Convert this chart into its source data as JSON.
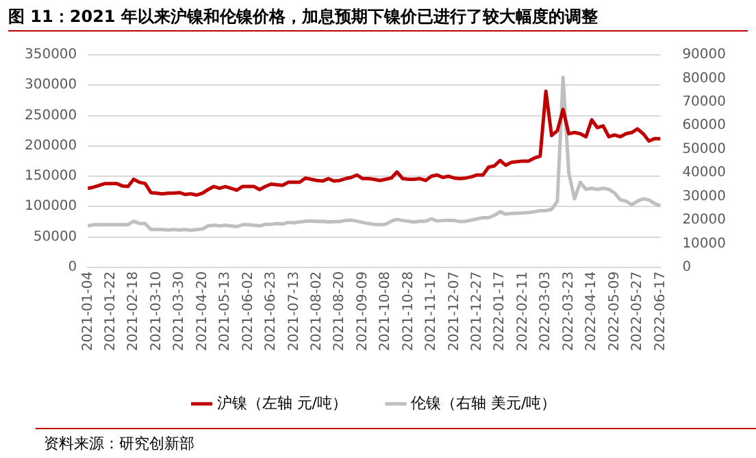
{
  "chart_data": {
    "type": "line",
    "title": "图 11：2021 年以来沪镍和伦镍价格，加息预期下镍价已进行了较大幅度的调整",
    "categories": [
      "2021-01-04",
      null,
      null,
      null,
      "2021-01-22",
      null,
      null,
      null,
      "2021-02-18",
      null,
      null,
      null,
      "2021-03-10",
      null,
      null,
      null,
      "2021-03-30",
      null,
      null,
      null,
      "2021-04-20",
      null,
      null,
      null,
      "2021-05-13",
      null,
      null,
      null,
      "2021-06-02",
      null,
      null,
      null,
      "2021-06-23",
      null,
      null,
      null,
      "2021-07-13",
      null,
      null,
      null,
      "2021-08-02",
      null,
      null,
      null,
      "2021-08-20",
      null,
      null,
      null,
      "2021-09-09",
      null,
      null,
      null,
      "2021-10-08",
      null,
      null,
      null,
      "2021-10-28",
      null,
      null,
      null,
      "2021-11-17",
      null,
      null,
      null,
      "2021-12-07",
      null,
      null,
      null,
      "2021-12-27",
      null,
      null,
      null,
      "2022-01-17",
      null,
      null,
      null,
      "2022-02-11",
      null,
      null,
      null,
      "2022-03-03",
      null,
      null,
      null,
      "2022-03-23",
      null,
      null,
      null,
      "2022-04-14",
      null,
      null,
      null,
      "2022-05-09",
      null,
      null,
      null,
      "2022-05-27",
      null,
      null,
      null,
      "2022-06-17"
    ],
    "series": [
      {
        "name": "沪镍（左轴 元/吨）",
        "color": "#c00000",
        "values": [
          130000,
          132000,
          135000,
          138000,
          138000,
          138000,
          134000,
          133000,
          145000,
          140000,
          138000,
          123000,
          122000,
          121000,
          122000,
          122000,
          123000,
          120000,
          121000,
          119000,
          122000,
          128000,
          133000,
          130000,
          133000,
          130000,
          127000,
          133000,
          133000,
          133000,
          128000,
          133000,
          137000,
          136000,
          135000,
          140000,
          140000,
          140000,
          147000,
          145000,
          143000,
          142000,
          146000,
          142000,
          143000,
          146000,
          148000,
          152000,
          146000,
          146000,
          145000,
          143000,
          145000,
          147000,
          157000,
          146000,
          145000,
          145000,
          146000,
          143000,
          150000,
          152000,
          148000,
          150000,
          147000,
          146000,
          147000,
          149000,
          152000,
          152000,
          165000,
          167000,
          176000,
          168000,
          173000,
          174000,
          175000,
          175000,
          180000,
          183000,
          290000,
          217000,
          225000,
          260000,
          220000,
          222000,
          220000,
          215000,
          243000,
          230000,
          233000,
          215000,
          218000,
          215000,
          220000,
          222000,
          228000,
          220000,
          208000,
          212000,
          212000
        ]
      },
      {
        "name": "伦镍（右轴 美元/吨）",
        "color": "#bfbfbf",
        "axis": "y2",
        "values": [
          17500,
          18000,
          18000,
          18000,
          18000,
          18000,
          18000,
          18000,
          19500,
          18500,
          18500,
          16000,
          16000,
          16000,
          15800,
          16000,
          15800,
          16000,
          15600,
          16000,
          16200,
          17500,
          17800,
          17500,
          17800,
          17500,
          17200,
          18000,
          18000,
          17800,
          17500,
          18200,
          18200,
          18500,
          18300,
          19000,
          18800,
          19200,
          19500,
          19600,
          19400,
          19500,
          19200,
          19300,
          19400,
          19800,
          20000,
          19500,
          19000,
          18500,
          18200,
          18000,
          18200,
          19500,
          20300,
          19800,
          19500,
          19200,
          19500,
          19500,
          20500,
          19600,
          19800,
          19800,
          19800,
          19300,
          19500,
          20000,
          20500,
          21000,
          21000,
          22000,
          23500,
          22500,
          22800,
          22900,
          23000,
          23200,
          23500,
          24000,
          24000,
          24500,
          28000,
          80500,
          40000,
          29000,
          36000,
          33000,
          33500,
          33000,
          33500,
          33000,
          31500,
          28500,
          28000,
          26500,
          28000,
          29000,
          28500,
          27000,
          26000
        ]
      }
    ],
    "ylim": [
      0,
      350000
    ],
    "yticks": [
      0,
      50000,
      100000,
      150000,
      200000,
      250000,
      300000,
      350000
    ],
    "y2lim": [
      0,
      90000
    ],
    "y2ticks": [
      0,
      10000,
      20000,
      30000,
      40000,
      50000,
      60000,
      70000,
      80000,
      90000
    ],
    "grid": "y",
    "legend": "bottom",
    "marker": "none",
    "line_style": "solid",
    "annotations": [
      "资料来源：研究创新部"
    ]
  }
}
